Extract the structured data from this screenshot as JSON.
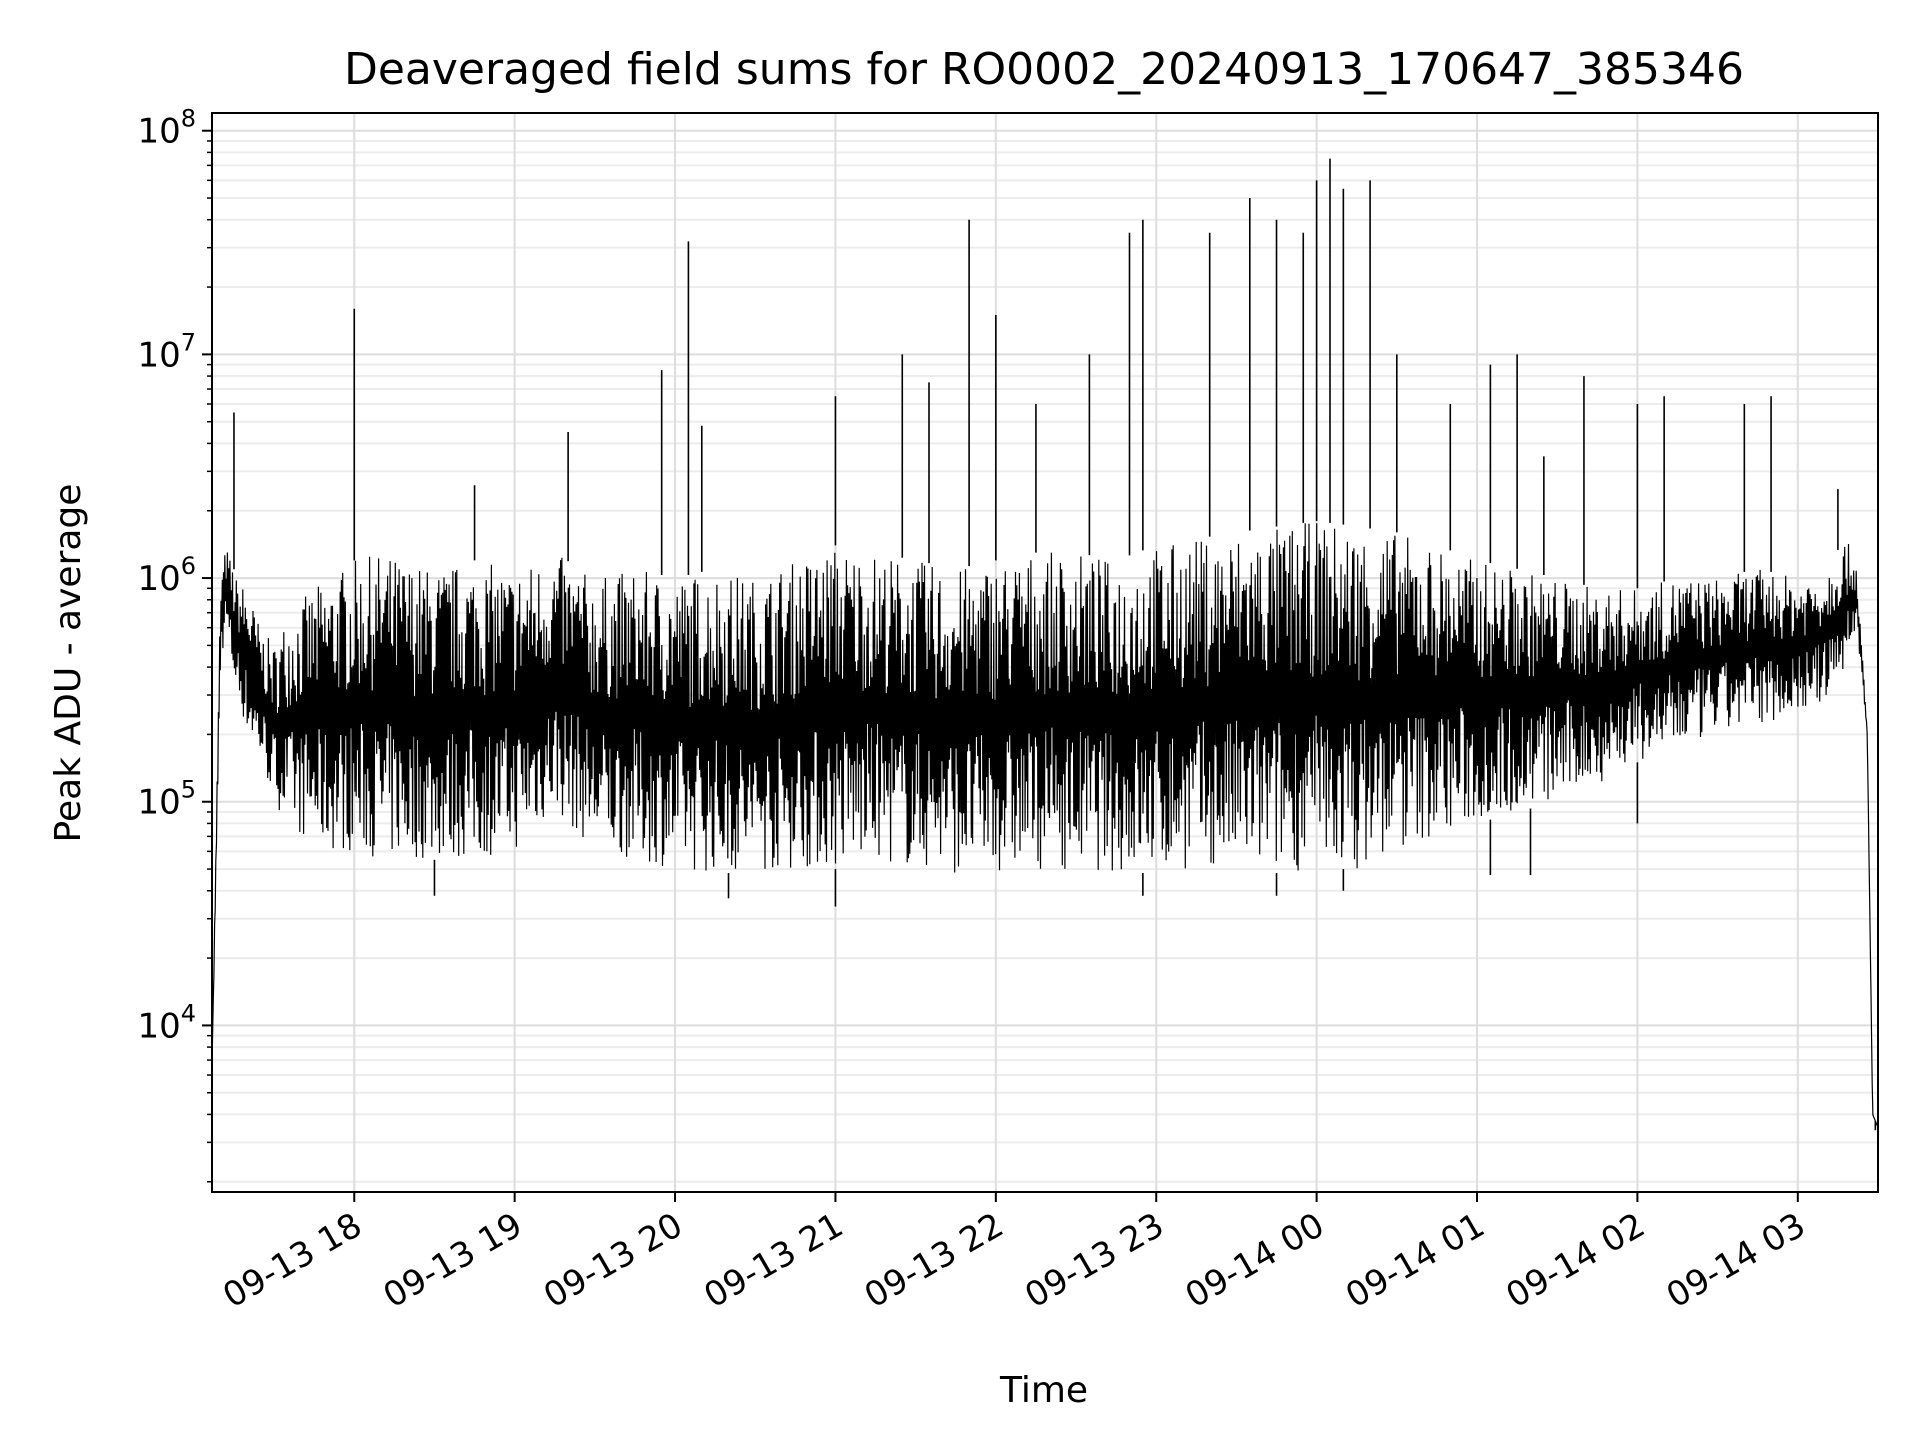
{
  "chart_data": {
    "type": "line",
    "title": "Deaveraged field sums for RO0002_20240913_170647_385346",
    "xlabel": "Time",
    "ylabel": "Peak ADU - average",
    "yscale": "log",
    "ylim": [
      1800,
      120000000
    ],
    "xlim": [
      "2024-09-13 17:06:47",
      "2024-09-14 03:30"
    ],
    "grid": true,
    "grid_minor": true,
    "x_ticks": [
      {
        "value": "2024-09-13 18:00",
        "label": "09-13 18"
      },
      {
        "value": "2024-09-13 19:00",
        "label": "09-13 19"
      },
      {
        "value": "2024-09-13 20:00",
        "label": "09-13 20"
      },
      {
        "value": "2024-09-13 21:00",
        "label": "09-13 21"
      },
      {
        "value": "2024-09-13 22:00",
        "label": "09-13 22"
      },
      {
        "value": "2024-09-13 23:00",
        "label": "09-13 23"
      },
      {
        "value": "2024-09-14 00:00",
        "label": "09-14 00"
      },
      {
        "value": "2024-09-14 01:00",
        "label": "09-14 01"
      },
      {
        "value": "2024-09-14 02:00",
        "label": "09-14 02"
      },
      {
        "value": "2024-09-14 03:00",
        "label": "09-14 03"
      }
    ],
    "y_ticks": [
      {
        "value": 10000,
        "base": "10",
        "exp": "4"
      },
      {
        "value": 100000,
        "base": "10",
        "exp": "5"
      },
      {
        "value": 1000000,
        "base": "10",
        "exp": "6"
      },
      {
        "value": 10000000,
        "base": "10",
        "exp": "7"
      },
      {
        "value": 100000000,
        "base": "10",
        "exp": "8"
      }
    ],
    "series": [
      {
        "color": "#000000",
        "x": [
          "2024-09-13 17:06:47",
          "2024-09-13 17:10",
          "2024-09-13 17:12",
          "2024-09-13 17:14",
          "2024-09-13 17:16",
          "2024-09-13 17:20",
          "2024-09-13 17:25",
          "2024-09-13 17:30",
          "2024-09-13 17:35",
          "2024-09-13 17:40",
          "2024-09-13 17:45",
          "2024-09-13 17:50",
          "2024-09-13 17:55",
          "2024-09-13 18:00",
          "2024-09-13 18:10",
          "2024-09-13 18:20",
          "2024-09-13 18:30",
          "2024-09-13 18:45",
          "2024-09-13 19:00",
          "2024-09-13 19:15",
          "2024-09-13 19:30",
          "2024-09-13 19:45",
          "2024-09-13 20:00",
          "2024-09-13 20:15",
          "2024-09-13 20:30",
          "2024-09-13 20:45",
          "2024-09-13 21:00",
          "2024-09-13 21:15",
          "2024-09-13 21:30",
          "2024-09-13 21:45",
          "2024-09-13 22:00",
          "2024-09-13 22:15",
          "2024-09-13 22:30",
          "2024-09-13 22:45",
          "2024-09-13 23:00",
          "2024-09-13 23:15",
          "2024-09-13 23:30",
          "2024-09-13 23:45",
          "2024-09-14 00:00",
          "2024-09-14 00:15",
          "2024-09-14 00:30",
          "2024-09-14 00:45",
          "2024-09-14 01:00",
          "2024-09-14 01:15",
          "2024-09-14 01:30",
          "2024-09-14 01:45",
          "2024-09-14 02:00",
          "2024-09-14 02:15",
          "2024-09-14 02:30",
          "2024-09-14 02:45",
          "2024-09-14 03:00",
          "2024-09-14 03:10",
          "2024-09-14 03:18",
          "2024-09-14 03:22",
          "2024-09-14 03:26",
          "2024-09-14 03:28",
          "2024-09-14 03:30"
        ],
        "y_upper": [
          6500,
          1000000,
          1400000,
          1200000,
          1000000,
          900000,
          600000,
          500000,
          700000,
          800000,
          900000,
          1000000,
          1100000,
          1200000,
          1300000,
          1200000,
          1100000,
          1200000,
          1100000,
          1300000,
          1000000,
          1100000,
          1000000,
          1100000,
          1000000,
          1200000,
          1400000,
          1300000,
          1200000,
          1100000,
          1200000,
          1300000,
          1300000,
          1200000,
          1400000,
          1500000,
          1600000,
          1700000,
          1800000,
          1700000,
          1600000,
          1400000,
          1200000,
          1100000,
          1000000,
          900000,
          900000,
          1000000,
          1000000,
          1100000,
          1000000,
          1100000,
          1500000,
          1200000,
          200000,
          4000,
          3500
        ],
        "y_lower": [
          6500,
          400000,
          600000,
          400000,
          300000,
          200000,
          150000,
          100000,
          80000,
          70000,
          65000,
          60000,
          60000,
          60000,
          55000,
          55000,
          55000,
          55000,
          60000,
          90000,
          60000,
          55000,
          50000,
          48000,
          48000,
          50000,
          50000,
          55000,
          50000,
          48000,
          48000,
          50000,
          50000,
          48000,
          48000,
          50000,
          50000,
          48000,
          50000,
          50000,
          60000,
          70000,
          80000,
          90000,
          100000,
          120000,
          150000,
          170000,
          200000,
          220000,
          250000,
          280000,
          400000,
          600000,
          200000,
          4000,
          3500
        ],
        "spikes": [
          {
            "x": "2024-09-13 17:15",
            "y": 5500000
          },
          {
            "x": "2024-09-13 18:00",
            "y": 16000000
          },
          {
            "x": "2024-09-13 18:45",
            "y": 2600000
          },
          {
            "x": "2024-09-13 19:20",
            "y": 4500000
          },
          {
            "x": "2024-09-13 19:55",
            "y": 8500000
          },
          {
            "x": "2024-09-13 20:05",
            "y": 32000000
          },
          {
            "x": "2024-09-13 20:10",
            "y": 4800000
          },
          {
            "x": "2024-09-13 21:00",
            "y": 6500000
          },
          {
            "x": "2024-09-13 21:25",
            "y": 10000000
          },
          {
            "x": "2024-09-13 21:35",
            "y": 7500000
          },
          {
            "x": "2024-09-13 21:50",
            "y": 40000000
          },
          {
            "x": "2024-09-13 22:00",
            "y": 15000000
          },
          {
            "x": "2024-09-13 22:15",
            "y": 6000000
          },
          {
            "x": "2024-09-13 22:35",
            "y": 10000000
          },
          {
            "x": "2024-09-13 22:50",
            "y": 35000000
          },
          {
            "x": "2024-09-13 22:55",
            "y": 40000000
          },
          {
            "x": "2024-09-13 23:20",
            "y": 35000000
          },
          {
            "x": "2024-09-13 23:35",
            "y": 50000000
          },
          {
            "x": "2024-09-13 23:45",
            "y": 40000000
          },
          {
            "x": "2024-09-13 23:55",
            "y": 35000000
          },
          {
            "x": "2024-09-14 00:00",
            "y": 60000000
          },
          {
            "x": "2024-09-14 00:05",
            "y": 75000000
          },
          {
            "x": "2024-09-14 00:10",
            "y": 55000000
          },
          {
            "x": "2024-09-14 00:20",
            "y": 60000000
          },
          {
            "x": "2024-09-14 00:30",
            "y": 10000000
          },
          {
            "x": "2024-09-14 00:50",
            "y": 6000000
          },
          {
            "x": "2024-09-14 01:05",
            "y": 9000000
          },
          {
            "x": "2024-09-14 01:15",
            "y": 10000000
          },
          {
            "x": "2024-09-14 01:25",
            "y": 3500000
          },
          {
            "x": "2024-09-14 01:40",
            "y": 8000000
          },
          {
            "x": "2024-09-14 02:00",
            "y": 6000000
          },
          {
            "x": "2024-09-14 02:10",
            "y": 6500000
          },
          {
            "x": "2024-09-14 02:40",
            "y": 6000000
          },
          {
            "x": "2024-09-14 02:50",
            "y": 6500000
          },
          {
            "x": "2024-09-14 03:15",
            "y": 2500000
          }
        ],
        "dips": [
          {
            "x": "2024-09-13 17:06:50",
            "y": 6500
          },
          {
            "x": "2024-09-13 18:30",
            "y": 38000
          },
          {
            "x": "2024-09-13 20:20",
            "y": 37000
          },
          {
            "x": "2024-09-13 21:00",
            "y": 34000
          },
          {
            "x": "2024-09-13 22:55",
            "y": 38000
          },
          {
            "x": "2024-09-13 23:45",
            "y": 38000
          },
          {
            "x": "2024-09-14 00:10",
            "y": 40000
          },
          {
            "x": "2024-09-14 01:05",
            "y": 47000
          },
          {
            "x": "2024-09-14 01:20",
            "y": 47000
          },
          {
            "x": "2024-09-14 02:00",
            "y": 80000
          },
          {
            "x": "2024-09-14 03:29",
            "y": 3400
          }
        ]
      }
    ]
  }
}
